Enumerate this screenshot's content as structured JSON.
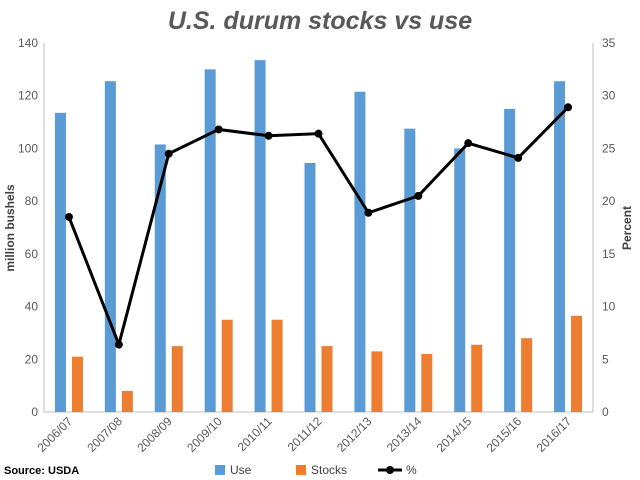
{
  "chart_data": {
    "type": "bar",
    "title": "U.S. durum stocks vs use",
    "categories": [
      "2006/07",
      "2007/08",
      "2008/09",
      "2009/10",
      "2010/11",
      "2011/12",
      "2012/13",
      "2013/14",
      "2014/15",
      "2015/16",
      "2016/17"
    ],
    "series": [
      {
        "name": "Use",
        "type": "bar",
        "axis": "left",
        "color": "#5b9bd5",
        "values": [
          113.5,
          125.5,
          101.5,
          130,
          133.5,
          94.5,
          121.5,
          107.5,
          100,
          115,
          125.5
        ]
      },
      {
        "name": "Stocks",
        "type": "bar",
        "axis": "left",
        "color": "#ed7d31",
        "values": [
          21,
          8,
          25,
          35,
          35,
          25,
          23,
          22,
          25.5,
          28,
          36.5
        ]
      },
      {
        "name": "%",
        "type": "line",
        "axis": "right",
        "color": "#000000",
        "values": [
          18.5,
          6.4,
          24.5,
          26.8,
          26.2,
          26.4,
          18.9,
          20.5,
          25.5,
          24.1,
          28.9
        ]
      }
    ],
    "ylabel": "million bushels",
    "ylim": [
      0,
      140
    ],
    "yticks": [
      "0",
      "20",
      "40",
      "60",
      "80",
      "100",
      "120",
      "140"
    ],
    "y2label": "Percent",
    "y2lim": [
      0,
      35
    ],
    "y2ticks": [
      "0",
      "5",
      "10",
      "15",
      "20",
      "25",
      "30",
      "35"
    ],
    "grid": false,
    "legend_position": "bottom",
    "source": "Source: USDA"
  }
}
